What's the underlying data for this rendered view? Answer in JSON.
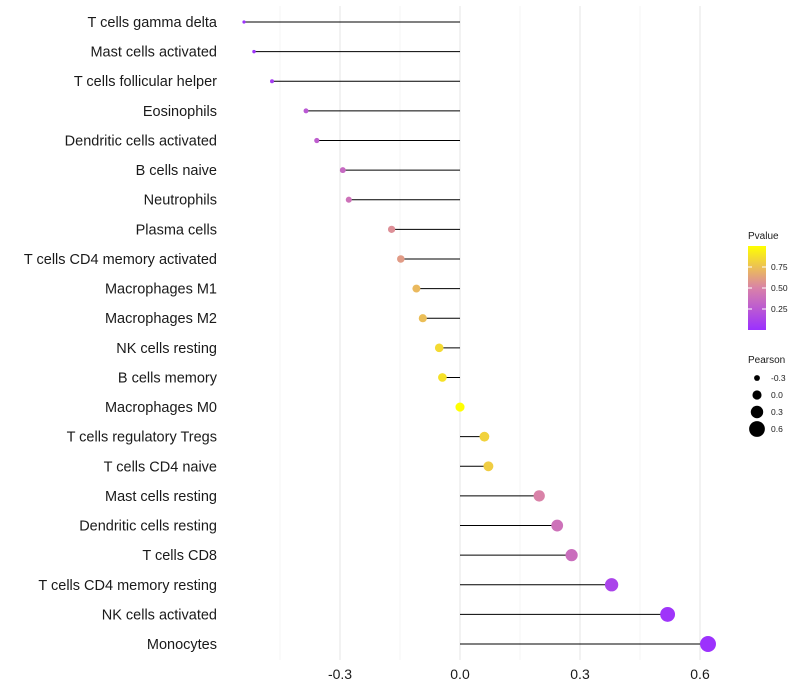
{
  "chart_data": {
    "type": "lollipop",
    "title": "",
    "xlabel": "",
    "ylabel": "",
    "xlim": [
      -0.53,
      0.62
    ],
    "xticks": [
      "-0.3",
      "0.0",
      "0.3",
      "0.6"
    ],
    "xtick_values": [
      -0.3,
      0.0,
      0.3,
      0.6
    ],
    "grid": true,
    "categories": [
      "T cells gamma delta",
      "Mast cells activated",
      "T cells follicular helper",
      "Eosinophils",
      "Dendritic cells activated",
      "B cells naive",
      "Neutrophils",
      "Plasma cells",
      "T cells CD4 memory activated",
      "Macrophages M1",
      "Macrophages M2",
      "NK cells resting",
      "B cells memory",
      "Macrophages M0",
      "T cells regulatory  Tregs ",
      "T cells CD4 naive",
      "Mast cells resting",
      "Dendritic cells resting",
      "T cells CD8",
      "T cells CD4 memory resting",
      "NK cells activated",
      "Monocytes"
    ],
    "pearson": [
      -0.54,
      -0.515,
      -0.47,
      -0.385,
      -0.358,
      -0.293,
      -0.278,
      -0.171,
      -0.148,
      -0.109,
      -0.093,
      -0.052,
      -0.044,
      0.0,
      0.061,
      0.071,
      0.198,
      0.243,
      0.279,
      0.379,
      0.519,
      0.62
    ],
    "pvalue": [
      0.02,
      0.03,
      0.08,
      0.25,
      0.28,
      0.35,
      0.4,
      0.55,
      0.6,
      0.72,
      0.74,
      0.85,
      0.88,
      1.0,
      0.82,
      0.8,
      0.5,
      0.4,
      0.38,
      0.12,
      0.03,
      0.01
    ],
    "legend_color": {
      "title": "Pvalue",
      "labels": [
        "0.75",
        "0.50",
        "0.25"
      ],
      "values": [
        0.75,
        0.5,
        0.25
      ],
      "colors": [
        "#ffff00",
        "#9b30ff"
      ]
    },
    "legend_size": {
      "title": "Pearson",
      "labels": [
        "-0.3",
        "0.0",
        "0.3",
        "0.6"
      ],
      "values": [
        -0.3,
        0.0,
        0.3,
        0.6
      ]
    }
  }
}
